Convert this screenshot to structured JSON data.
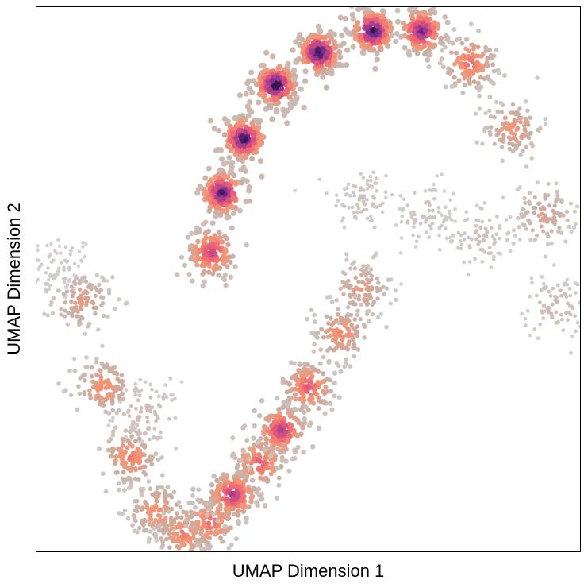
{
  "chart_data": {
    "type": "scatter",
    "xlabel": "UMAP Dimension 1",
    "ylabel": "UMAP Dimension 2",
    "xlim": [
      0,
      100
    ],
    "ylim": [
      0,
      100
    ],
    "grid": false,
    "ticks": false,
    "color_scale": "density (magma)",
    "palette": {
      "low": "#d3d3d3",
      "low_mid": "#c9b0a6",
      "mid": "#f99070",
      "mid_high": "#e0527a",
      "high": "#7a2a9a",
      "peak": "#0b0916"
    },
    "series": [
      {
        "values": [
          {
            "x": 4,
            "y": 52,
            "density": 0.05
          },
          {
            "x": 8,
            "y": 46,
            "density": 0.35
          },
          {
            "x": 12,
            "y": 30,
            "density": 0.45
          },
          {
            "x": 17,
            "y": 17,
            "density": 0.5
          },
          {
            "x": 22,
            "y": 7,
            "density": 0.45
          },
          {
            "x": 27,
            "y": 3,
            "density": 0.5
          },
          {
            "x": 32,
            "y": 5,
            "density": 0.55
          },
          {
            "x": 36,
            "y": 10,
            "density": 0.75
          },
          {
            "x": 41,
            "y": 16,
            "density": 0.6
          },
          {
            "x": 45,
            "y": 22,
            "density": 0.75
          },
          {
            "x": 50,
            "y": 30,
            "density": 0.6
          },
          {
            "x": 56,
            "y": 40,
            "density": 0.45
          },
          {
            "x": 60,
            "y": 48,
            "density": 0.35
          },
          {
            "x": 32,
            "y": 55,
            "density": 0.7
          },
          {
            "x": 34,
            "y": 66,
            "density": 0.92
          },
          {
            "x": 38,
            "y": 76,
            "density": 0.97
          },
          {
            "x": 44,
            "y": 86,
            "density": 1.0
          },
          {
            "x": 52,
            "y": 92,
            "density": 1.0
          },
          {
            "x": 62,
            "y": 96,
            "density": 0.98
          },
          {
            "x": 71,
            "y": 96,
            "density": 0.85
          },
          {
            "x": 80,
            "y": 90,
            "density": 0.55
          },
          {
            "x": 88,
            "y": 78,
            "density": 0.4
          },
          {
            "x": 94,
            "y": 62,
            "density": 0.3
          },
          {
            "x": 96,
            "y": 45,
            "density": 0.15
          },
          {
            "x": 60,
            "y": 65,
            "density": 0.1
          },
          {
            "x": 72,
            "y": 62,
            "density": 0.1
          },
          {
            "x": 82,
            "y": 58,
            "density": 0.12
          },
          {
            "x": 20,
            "y": 25,
            "density": 0.15
          }
        ]
      }
    ]
  }
}
